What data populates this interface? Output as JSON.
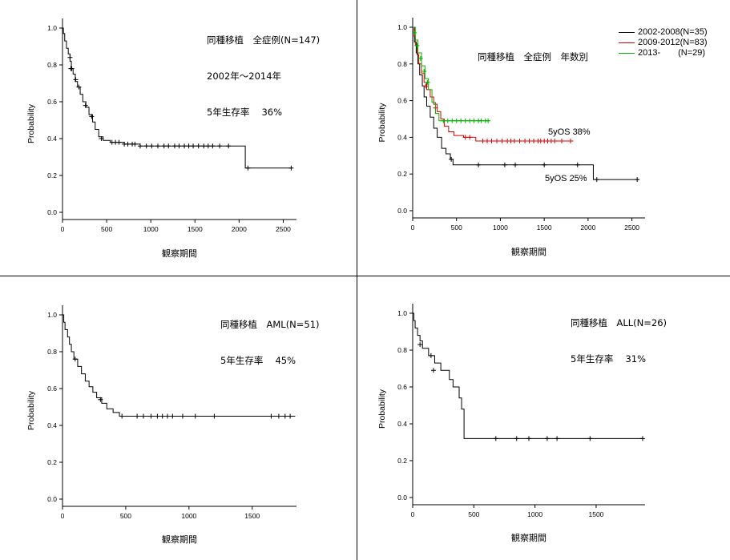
{
  "chart_data": [
    {
      "type": "line",
      "subtype": "kaplan-meier",
      "annotation": [
        "同種移植　全症例(N=147)",
        "2002年～2014年",
        "5年生存率　 36%"
      ],
      "xlabel": "観察期間",
      "ylabel": "Probability",
      "xlim": [
        0,
        2650
      ],
      "ylim": [
        0,
        1.0
      ],
      "xticks": [
        0,
        500,
        1000,
        1500,
        2000,
        2500
      ],
      "yticks": [
        0.0,
        0.2,
        0.4,
        0.6,
        0.8,
        1.0
      ],
      "series": [
        {
          "color": "#000000",
          "steps": [
            [
              0,
              1.0
            ],
            [
              10,
              0.97
            ],
            [
              25,
              0.93
            ],
            [
              45,
              0.89
            ],
            [
              65,
              0.86
            ],
            [
              85,
              0.82
            ],
            [
              100,
              0.78
            ],
            [
              120,
              0.75
            ],
            [
              145,
              0.71
            ],
            [
              170,
              0.68
            ],
            [
              200,
              0.64
            ],
            [
              230,
              0.6
            ],
            [
              265,
              0.57
            ],
            [
              300,
              0.53
            ],
            [
              340,
              0.49
            ],
            [
              370,
              0.45
            ],
            [
              410,
              0.41
            ],
            [
              460,
              0.39
            ],
            [
              540,
              0.38
            ],
            [
              700,
              0.37
            ],
            [
              880,
              0.36
            ],
            [
              2070,
              0.24
            ],
            [
              2600,
              0.24
            ]
          ],
          "censored": [
            [
              85,
              0.84
            ],
            [
              95,
              0.78
            ],
            [
              105,
              0.78
            ],
            [
              150,
              0.72
            ],
            [
              185,
              0.68
            ],
            [
              260,
              0.58
            ],
            [
              330,
              0.52
            ],
            [
              440,
              0.4
            ],
            [
              560,
              0.38
            ],
            [
              600,
              0.38
            ],
            [
              640,
              0.38
            ],
            [
              700,
              0.37
            ],
            [
              740,
              0.37
            ],
            [
              790,
              0.37
            ],
            [
              820,
              0.37
            ],
            [
              880,
              0.36
            ],
            [
              950,
              0.36
            ],
            [
              1010,
              0.36
            ],
            [
              1080,
              0.36
            ],
            [
              1150,
              0.36
            ],
            [
              1200,
              0.36
            ],
            [
              1270,
              0.36
            ],
            [
              1320,
              0.36
            ],
            [
              1380,
              0.36
            ],
            [
              1430,
              0.36
            ],
            [
              1480,
              0.36
            ],
            [
              1540,
              0.36
            ],
            [
              1600,
              0.36
            ],
            [
              1650,
              0.36
            ],
            [
              1700,
              0.36
            ],
            [
              1780,
              0.36
            ],
            [
              1880,
              0.36
            ],
            [
              2100,
              0.24
            ],
            [
              2590,
              0.24
            ]
          ]
        }
      ]
    },
    {
      "type": "line",
      "subtype": "kaplan-meier",
      "annotation": [
        "同種移植　全症例　年数別"
      ],
      "xlabel": "観察期間",
      "ylabel": "Probability",
      "xlim": [
        0,
        2650
      ],
      "ylim": [
        0,
        1.0
      ],
      "xticks": [
        0,
        500,
        1000,
        1500,
        2000,
        2500
      ],
      "yticks": [
        0.0,
        0.2,
        0.4,
        0.6,
        0.8,
        1.0
      ],
      "legend_position": "top-right",
      "curve_labels": [
        "5yOS 38%",
        "5yOS 25%"
      ],
      "series": [
        {
          "name": "2002-2008(N=35)",
          "color": "#000000",
          "steps": [
            [
              0,
              1.0
            ],
            [
              20,
              0.92
            ],
            [
              40,
              0.86
            ],
            [
              60,
              0.8
            ],
            [
              80,
              0.74
            ],
            [
              110,
              0.68
            ],
            [
              130,
              0.62
            ],
            [
              160,
              0.57
            ],
            [
              200,
              0.51
            ],
            [
              240,
              0.45
            ],
            [
              280,
              0.4
            ],
            [
              330,
              0.34
            ],
            [
              380,
              0.31
            ],
            [
              430,
              0.28
            ],
            [
              460,
              0.25
            ],
            [
              2060,
              0.17
            ],
            [
              2580,
              0.17
            ]
          ],
          "censored": [
            [
              440,
              0.28
            ],
            [
              750,
              0.25
            ],
            [
              1050,
              0.25
            ],
            [
              1170,
              0.25
            ],
            [
              1500,
              0.25
            ],
            [
              1880,
              0.25
            ],
            [
              2100,
              0.17
            ],
            [
              2560,
              0.17
            ]
          ]
        },
        {
          "name": "2009-2012(N=83)",
          "color": "#e00000",
          "steps": [
            [
              0,
              1.0
            ],
            [
              15,
              0.95
            ],
            [
              30,
              0.9
            ],
            [
              50,
              0.85
            ],
            [
              70,
              0.8
            ],
            [
              100,
              0.75
            ],
            [
              130,
              0.7
            ],
            [
              160,
              0.66
            ],
            [
              200,
              0.62
            ],
            [
              240,
              0.58
            ],
            [
              280,
              0.54
            ],
            [
              320,
              0.5
            ],
            [
              360,
              0.46
            ],
            [
              410,
              0.43
            ],
            [
              470,
              0.41
            ],
            [
              580,
              0.4
            ],
            [
              720,
              0.38
            ],
            [
              1830,
              0.38
            ]
          ],
          "censored": [
            [
              150,
              0.68
            ],
            [
              260,
              0.56
            ],
            [
              600,
              0.4
            ],
            [
              650,
              0.4
            ],
            [
              800,
              0.38
            ],
            [
              850,
              0.38
            ],
            [
              900,
              0.38
            ],
            [
              960,
              0.38
            ],
            [
              1020,
              0.38
            ],
            [
              1080,
              0.38
            ],
            [
              1120,
              0.38
            ],
            [
              1160,
              0.38
            ],
            [
              1220,
              0.38
            ],
            [
              1280,
              0.38
            ],
            [
              1330,
              0.38
            ],
            [
              1380,
              0.38
            ],
            [
              1430,
              0.38
            ],
            [
              1460,
              0.38
            ],
            [
              1500,
              0.38
            ],
            [
              1540,
              0.38
            ],
            [
              1580,
              0.38
            ],
            [
              1620,
              0.38
            ],
            [
              1700,
              0.38
            ],
            [
              1800,
              0.38
            ]
          ]
        },
        {
          "name": "2013-　　(N=29)",
          "color": "#00b000",
          "steps": [
            [
              0,
              1.0
            ],
            [
              30,
              0.93
            ],
            [
              60,
              0.86
            ],
            [
              100,
              0.79
            ],
            [
              140,
              0.72
            ],
            [
              180,
              0.66
            ],
            [
              220,
              0.59
            ],
            [
              260,
              0.53
            ],
            [
              300,
              0.49
            ],
            [
              880,
              0.49
            ]
          ],
          "censored": [
            [
              20,
              0.97
            ],
            [
              50,
              0.9
            ],
            [
              90,
              0.83
            ],
            [
              130,
              0.76
            ],
            [
              170,
              0.7
            ],
            [
              350,
              0.49
            ],
            [
              400,
              0.49
            ],
            [
              450,
              0.49
            ],
            [
              500,
              0.49
            ],
            [
              550,
              0.49
            ],
            [
              600,
              0.49
            ],
            [
              650,
              0.49
            ],
            [
              700,
              0.49
            ],
            [
              750,
              0.49
            ],
            [
              780,
              0.49
            ],
            [
              830,
              0.49
            ],
            [
              860,
              0.49
            ]
          ]
        }
      ]
    },
    {
      "type": "line",
      "subtype": "kaplan-meier",
      "annotation": [
        "同種移植　AML(N=51)",
        "5年生存率　 45%"
      ],
      "xlabel": "観察期間",
      "ylabel": "Probability",
      "xlim": [
        0,
        1850
      ],
      "ylim": [
        0,
        1.0
      ],
      "xticks": [
        0,
        500,
        1000,
        1500
      ],
      "yticks": [
        0.0,
        0.2,
        0.4,
        0.6,
        0.8,
        1.0
      ],
      "series": [
        {
          "color": "#000000",
          "steps": [
            [
              0,
              1.0
            ],
            [
              10,
              0.96
            ],
            [
              20,
              0.92
            ],
            [
              40,
              0.88
            ],
            [
              55,
              0.84
            ],
            [
              70,
              0.8
            ],
            [
              90,
              0.76
            ],
            [
              120,
              0.72
            ],
            [
              150,
              0.68
            ],
            [
              180,
              0.64
            ],
            [
              210,
              0.61
            ],
            [
              240,
              0.58
            ],
            [
              270,
              0.55
            ],
            [
              310,
              0.52
            ],
            [
              350,
              0.49
            ],
            [
              400,
              0.47
            ],
            [
              450,
              0.45
            ],
            [
              1840,
              0.45
            ]
          ],
          "censored": [
            [
              100,
              0.76
            ],
            [
              300,
              0.54
            ],
            [
              470,
              0.45
            ],
            [
              590,
              0.45
            ],
            [
              640,
              0.45
            ],
            [
              700,
              0.45
            ],
            [
              750,
              0.45
            ],
            [
              790,
              0.45
            ],
            [
              830,
              0.45
            ],
            [
              870,
              0.45
            ],
            [
              950,
              0.45
            ],
            [
              1050,
              0.45
            ],
            [
              1200,
              0.45
            ],
            [
              1650,
              0.45
            ],
            [
              1710,
              0.45
            ],
            [
              1760,
              0.45
            ],
            [
              1800,
              0.45
            ]
          ]
        }
      ]
    },
    {
      "type": "line",
      "subtype": "kaplan-meier",
      "annotation": [
        "同種移植　ALL(N=26)",
        "5年生存率　 31%"
      ],
      "xlabel": "観察期間",
      "ylabel": "Probability",
      "xlim": [
        0,
        1900
      ],
      "ylim": [
        0,
        1.0
      ],
      "xticks": [
        0,
        500,
        1000,
        1500
      ],
      "yticks": [
        0.0,
        0.2,
        0.4,
        0.6,
        0.8,
        1.0
      ],
      "series": [
        {
          "color": "#000000",
          "steps": [
            [
              0,
              1.0
            ],
            [
              10,
              0.96
            ],
            [
              20,
              0.92
            ],
            [
              40,
              0.88
            ],
            [
              60,
              0.85
            ],
            [
              80,
              0.81
            ],
            [
              130,
              0.77
            ],
            [
              180,
              0.73
            ],
            [
              230,
              0.69
            ],
            [
              300,
              0.64
            ],
            [
              330,
              0.6
            ],
            [
              380,
              0.54
            ],
            [
              400,
              0.48
            ],
            [
              420,
              0.32
            ],
            [
              1880,
              0.32
            ]
          ],
          "censored": [
            [
              60,
              0.83
            ],
            [
              150,
              0.77
            ],
            [
              170,
              0.69
            ],
            [
              680,
              0.32
            ],
            [
              850,
              0.32
            ],
            [
              950,
              0.32
            ],
            [
              1100,
              0.32
            ],
            [
              1180,
              0.32
            ],
            [
              1450,
              0.32
            ],
            [
              1880,
              0.32
            ]
          ]
        }
      ]
    }
  ]
}
